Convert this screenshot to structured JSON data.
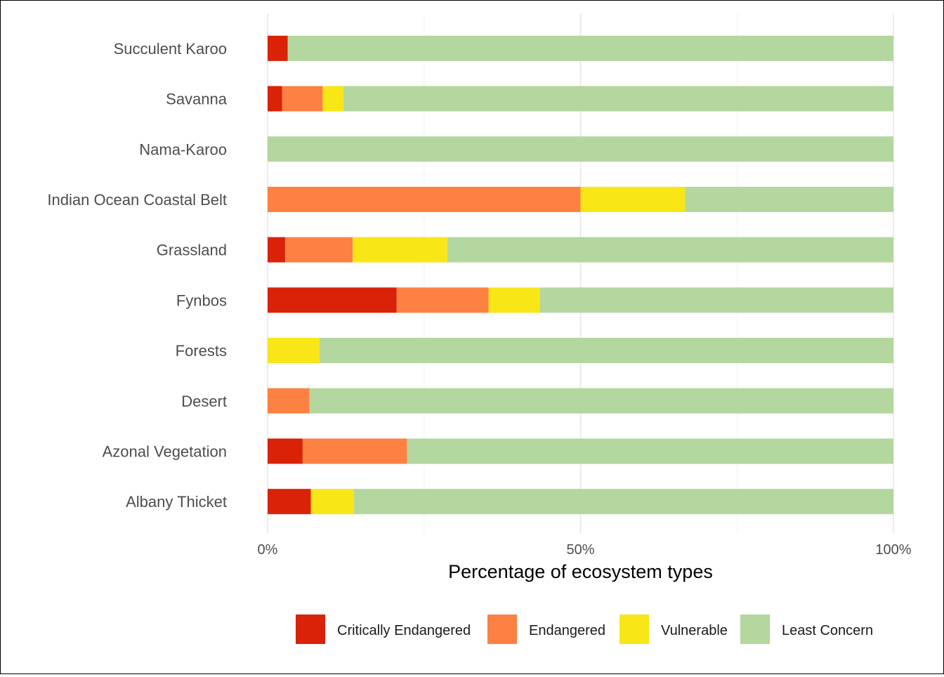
{
  "chart_data": {
    "type": "bar",
    "orientation": "horizontal",
    "stacked": true,
    "categories": [
      "Succulent Karoo",
      "Savanna",
      "Nama-Karoo",
      "Indian Ocean Coastal Belt",
      "Grassland",
      "Fynbos",
      "Forests",
      "Desert",
      "Azonal Vegetation",
      "Albany Thicket"
    ],
    "series": [
      {
        "name": "Critically Endangered",
        "color": "#d92207",
        "values": [
          3.2,
          2.3,
          0,
          0,
          2.8,
          20.6,
          0,
          0,
          5.6,
          6.9
        ]
      },
      {
        "name": "Endangered",
        "color": "#fc8142",
        "values": [
          0,
          6.5,
          0,
          50.0,
          10.8,
          14.7,
          0,
          6.7,
          16.7,
          0
        ]
      },
      {
        "name": "Vulnerable",
        "color": "#f8e616",
        "values": [
          0,
          3.3,
          0,
          16.7,
          15.1,
          8.2,
          8.3,
          0,
          0,
          6.9
        ]
      },
      {
        "name": "Least Concern",
        "color": "#b3d79e",
        "values": [
          96.8,
          87.9,
          100,
          33.3,
          71.3,
          56.5,
          91.7,
          93.3,
          77.7,
          86.2
        ]
      }
    ],
    "xlabel": "Percentage of ecosystem types",
    "ylabel": "",
    "xlim": [
      0,
      100
    ],
    "xticks": [
      0,
      50,
      100
    ],
    "xtick_labels": [
      "0%",
      "50%",
      "100%"
    ],
    "grid": "vertical major",
    "legend_position": "bottom"
  }
}
